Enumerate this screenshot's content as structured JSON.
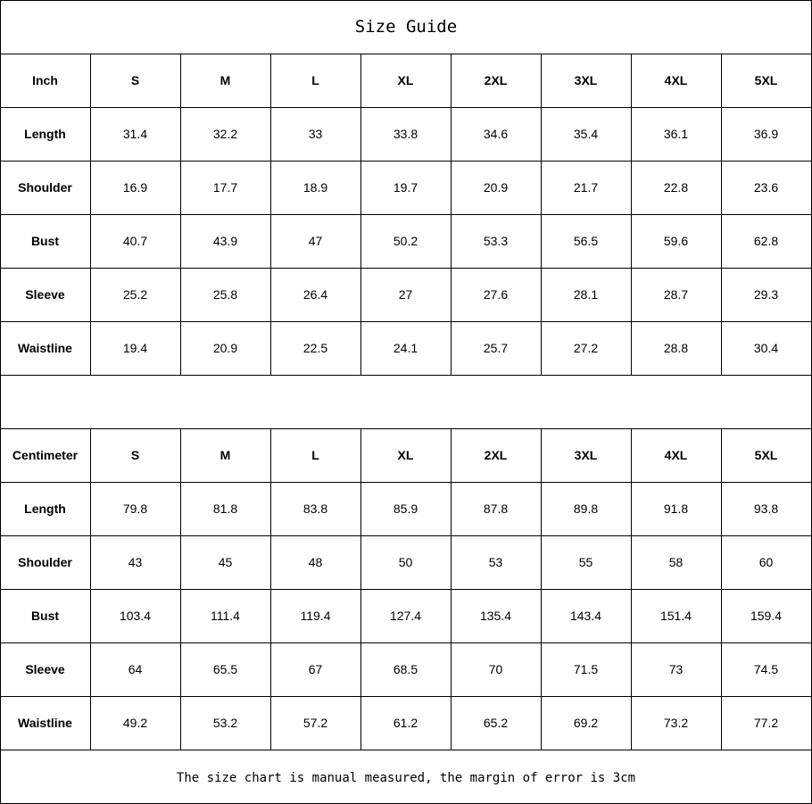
{
  "title": "Size Guide",
  "sizes": [
    "S",
    "M",
    "L",
    "XL",
    "2XL",
    "3XL",
    "4XL",
    "5XL"
  ],
  "tables": [
    {
      "unit": "Inch",
      "rows": [
        {
          "label": "Length",
          "values": [
            "31.4",
            "32.2",
            "33",
            "33.8",
            "34.6",
            "35.4",
            "36.1",
            "36.9"
          ]
        },
        {
          "label": "Shoulder",
          "values": [
            "16.9",
            "17.7",
            "18.9",
            "19.7",
            "20.9",
            "21.7",
            "22.8",
            "23.6"
          ]
        },
        {
          "label": "Bust",
          "values": [
            "40.7",
            "43.9",
            "47",
            "50.2",
            "53.3",
            "56.5",
            "59.6",
            "62.8"
          ]
        },
        {
          "label": "Sleeve",
          "values": [
            "25.2",
            "25.8",
            "26.4",
            "27",
            "27.6",
            "28.1",
            "28.7",
            "29.3"
          ]
        },
        {
          "label": "Waistline",
          "values": [
            "19.4",
            "20.9",
            "22.5",
            "24.1",
            "25.7",
            "27.2",
            "28.8",
            "30.4"
          ]
        }
      ]
    },
    {
      "unit": "Centimeter",
      "rows": [
        {
          "label": "Length",
          "values": [
            "79.8",
            "81.8",
            "83.8",
            "85.9",
            "87.8",
            "89.8",
            "91.8",
            "93.8"
          ]
        },
        {
          "label": "Shoulder",
          "values": [
            "43",
            "45",
            "48",
            "50",
            "53",
            "55",
            "58",
            "60"
          ]
        },
        {
          "label": "Bust",
          "values": [
            "103.4",
            "111.4",
            "119.4",
            "127.4",
            "135.4",
            "143.4",
            "151.4",
            "159.4"
          ]
        },
        {
          "label": "Sleeve",
          "values": [
            "64",
            "65.5",
            "67",
            "68.5",
            "70",
            "71.5",
            "73",
            "74.5"
          ]
        },
        {
          "label": "Waistline",
          "values": [
            "49.2",
            "53.2",
            "57.2",
            "61.2",
            "65.2",
            "69.2",
            "73.2",
            "77.2"
          ]
        }
      ]
    }
  ],
  "footer": "The size chart is manual measured, the margin of error is 3cm"
}
